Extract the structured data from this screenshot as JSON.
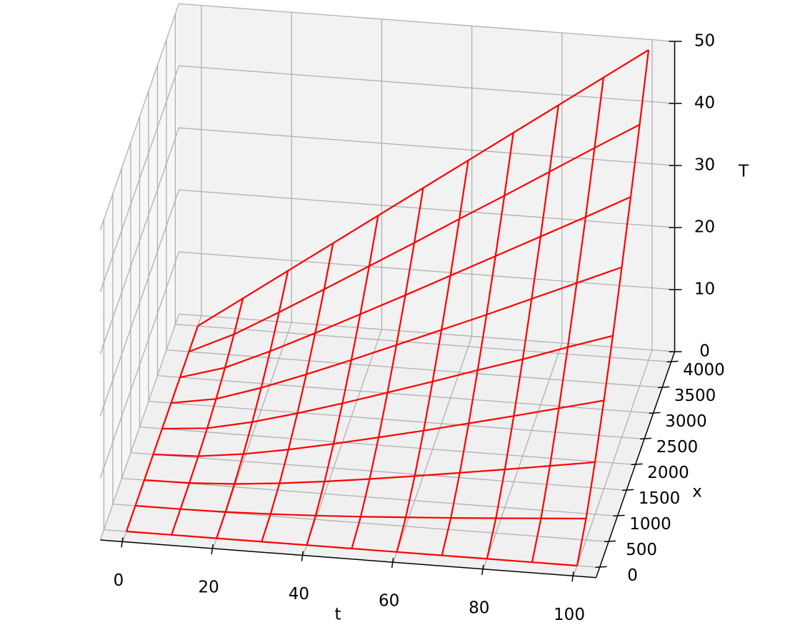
{
  "chart_data": {
    "type": "wireframe3d",
    "xlabel": "t",
    "ylabel": "x",
    "zlabel": "T",
    "color": "#ff0000",
    "grid": true,
    "t": [
      0,
      10,
      20,
      30,
      40,
      50,
      60,
      70,
      80,
      90,
      100
    ],
    "x": [
      0,
      500,
      1000,
      1500,
      2000,
      2500,
      3000,
      3500,
      4000
    ],
    "z": [
      [
        0,
        0,
        0,
        0,
        0,
        0,
        0,
        0,
        0
      ],
      [
        0,
        0.01,
        0.08,
        0.26,
        0.63,
        1.22,
        2.11,
        3.35,
        5
      ],
      [
        0,
        0.1,
        0.47,
        1.16,
        2.18,
        3.56,
        5.31,
        7.45,
        10
      ],
      [
        0,
        0.32,
        1.14,
        2.43,
        4.14,
        6.27,
        8.79,
        11.7,
        15
      ],
      [
        0,
        0.62,
        1.98,
        3.9,
        6.3,
        9.14,
        12.38,
        16,
        20
      ],
      [
        0,
        1,
        2.93,
        5.5,
        8.58,
        12.1,
        16,
        20.3,
        25
      ],
      [
        0,
        1.44,
        3.96,
        7.14,
        10.9,
        15.1,
        19.7,
        24.7,
        30
      ],
      [
        0,
        1.9,
        5.03,
        8.86,
        13.3,
        18.1,
        23.4,
        29,
        35
      ],
      [
        0,
        2.4,
        6.12,
        10.6,
        15.6,
        21.2,
        27.1,
        33.4,
        40
      ],
      [
        0,
        2.93,
        7.25,
        12.4,
        18.1,
        24.3,
        30.8,
        37.8,
        45
      ],
      [
        0,
        3.45,
        8.4,
        14.2,
        20.5,
        27.4,
        34.6,
        42.1,
        50
      ]
    ],
    "xlim": [
      -5,
      105
    ],
    "xticks": [
      0,
      20,
      40,
      60,
      80,
      100
    ],
    "ylim": [
      -200,
      4200
    ],
    "yticks": [
      0,
      500,
      1000,
      1500,
      2000,
      2500,
      3000,
      3500,
      4000
    ],
    "zlim": [
      0,
      50
    ],
    "zticks": [
      0,
      10,
      20,
      30,
      40,
      50
    ]
  }
}
